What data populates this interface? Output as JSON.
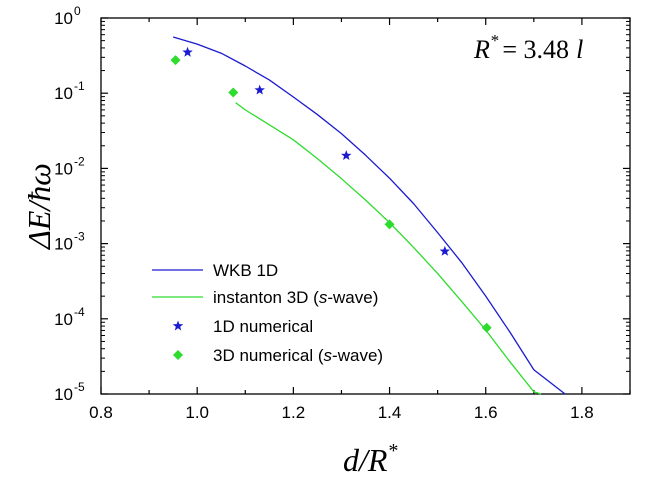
{
  "chart_data": {
    "type": "line",
    "annotation": {
      "lhs": "R",
      "lhs_sup": "*",
      "rhs": "= 3.48",
      "unit": "l"
    },
    "xlabel": {
      "main": "d/R",
      "sup": "*"
    },
    "ylabel": "ΔE/ħω",
    "xlim": [
      0.8,
      1.9
    ],
    "ylim_log10": [
      -5,
      0
    ],
    "y_scale": "log",
    "x_ticks": [
      "0.8",
      "1.0",
      "1.2",
      "1.4",
      "1.6",
      "1.8"
    ],
    "x_tick_values": [
      0.8,
      1.0,
      1.2,
      1.4,
      1.6,
      1.8
    ],
    "y_ticks": [
      {
        "base": "10",
        "exp": "0",
        "value": 1
      },
      {
        "base": "10",
        "exp": "-1",
        "value": 0.1
      },
      {
        "base": "10",
        "exp": "-2",
        "value": 0.01
      },
      {
        "base": "10",
        "exp": "-3",
        "value": 0.001
      },
      {
        "base": "10",
        "exp": "-4",
        "value": 0.0001
      },
      {
        "base": "10",
        "exp": "-5",
        "value": 1e-05
      }
    ],
    "grid": false,
    "legend_position": "bottom-left",
    "series": [
      {
        "name": "WKB 1D",
        "kind": "line",
        "color": "#1b1bd0",
        "x": [
          0.95,
          1.0,
          1.05,
          1.1,
          1.15,
          1.2,
          1.25,
          1.3,
          1.35,
          1.4,
          1.45,
          1.5,
          1.55,
          1.6,
          1.65,
          1.7,
          1.765
        ],
        "y": [
          0.56,
          0.45,
          0.34,
          0.23,
          0.15,
          0.089,
          0.052,
          0.029,
          0.015,
          0.0074,
          0.0034,
          0.0014,
          0.00056,
          0.0002,
          6.7e-05,
          2.1e-05,
          1e-05
        ]
      },
      {
        "name": "instanton 3D (s-wave)",
        "name_parts": [
          "instanton 3D (",
          "s",
          "-wave)"
        ],
        "kind": "line",
        "color": "#2edc2e",
        "x": [
          1.08,
          1.1,
          1.15,
          1.2,
          1.25,
          1.3,
          1.35,
          1.4,
          1.45,
          1.5,
          1.55,
          1.6,
          1.65,
          1.7,
          1.715
        ],
        "y": [
          0.075,
          0.06,
          0.038,
          0.024,
          0.0135,
          0.0073,
          0.0038,
          0.0019,
          0.00089,
          0.0004,
          0.00017,
          7.1e-05,
          2.7e-05,
          1.07e-05,
          1e-05
        ]
      },
      {
        "name": "1D numerical",
        "kind": "scatter",
        "marker": "star",
        "color": "#1b1bd0",
        "x": [
          0.98,
          1.13,
          1.31,
          1.515
        ],
        "y": [
          0.35,
          0.11,
          0.0148,
          0.00079
        ]
      },
      {
        "name": "3D numerical (s-wave)",
        "name_parts": [
          "3D numerical (",
          "s",
          "-wave)"
        ],
        "kind": "scatter",
        "marker": "diamond",
        "color": "#2edc2e",
        "x": [
          0.955,
          1.075,
          1.4,
          1.602
        ],
        "y": [
          0.275,
          0.102,
          0.0018,
          7.6e-05
        ]
      }
    ]
  }
}
